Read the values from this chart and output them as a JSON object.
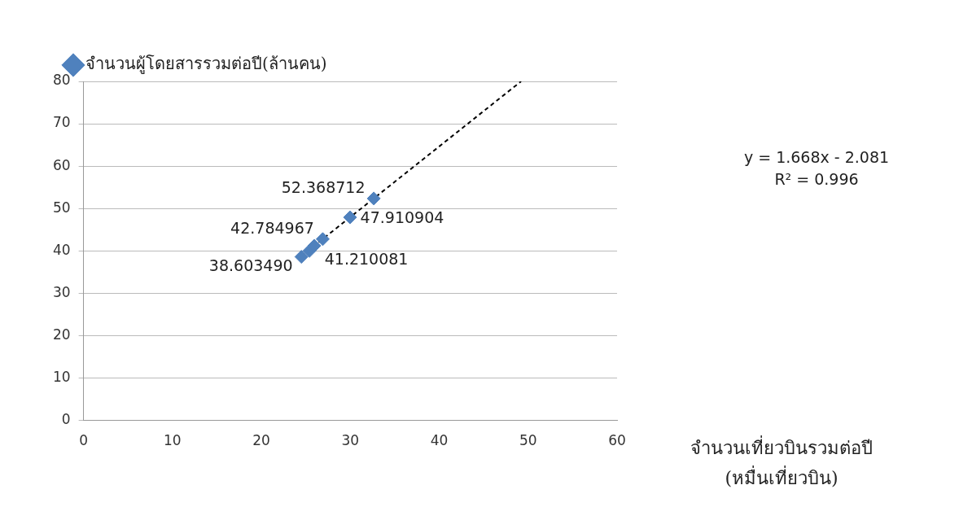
{
  "chart_data": {
    "type": "scatter",
    "xlabel": "จำนวนเที่ยวบินรวมต่อปี\n(หมื่นเที่ยวบิน)",
    "xlim": [
      0,
      60
    ],
    "xticks": [
      0,
      10,
      20,
      30,
      40,
      50,
      60
    ],
    "ylim": [
      0,
      80
    ],
    "yticks": [
      0,
      10,
      20,
      30,
      40,
      50,
      60,
      70,
      80
    ],
    "grid": "y",
    "legend": "top left",
    "marker": "diamond",
    "series": [
      {
        "name": "จำนวนผู้โดยสารรวมต่อปี(ล้านคน)",
        "color": "#4f81bd",
        "x": [
          24.5,
          25.4,
          25.95,
          26.9,
          29.97,
          32.64
        ],
        "values": [
          38.60349,
          40,
          41.210081,
          42.784967,
          47.910904,
          52.368712
        ],
        "value_labels": [
          "38.603490",
          null,
          "41.210081",
          "42.784967",
          "47.910904",
          "52.368712"
        ]
      },
      {
        "type": "line",
        "color": "#000000",
        "line_style": "dashed",
        "marker": "none",
        "x": [
          24.5,
          49.2
        ],
        "values": [
          38.8,
          80
        ]
      }
    ],
    "annotations": [
      "y = 1.668x - 2.081",
      "R² = 0.996"
    ]
  }
}
